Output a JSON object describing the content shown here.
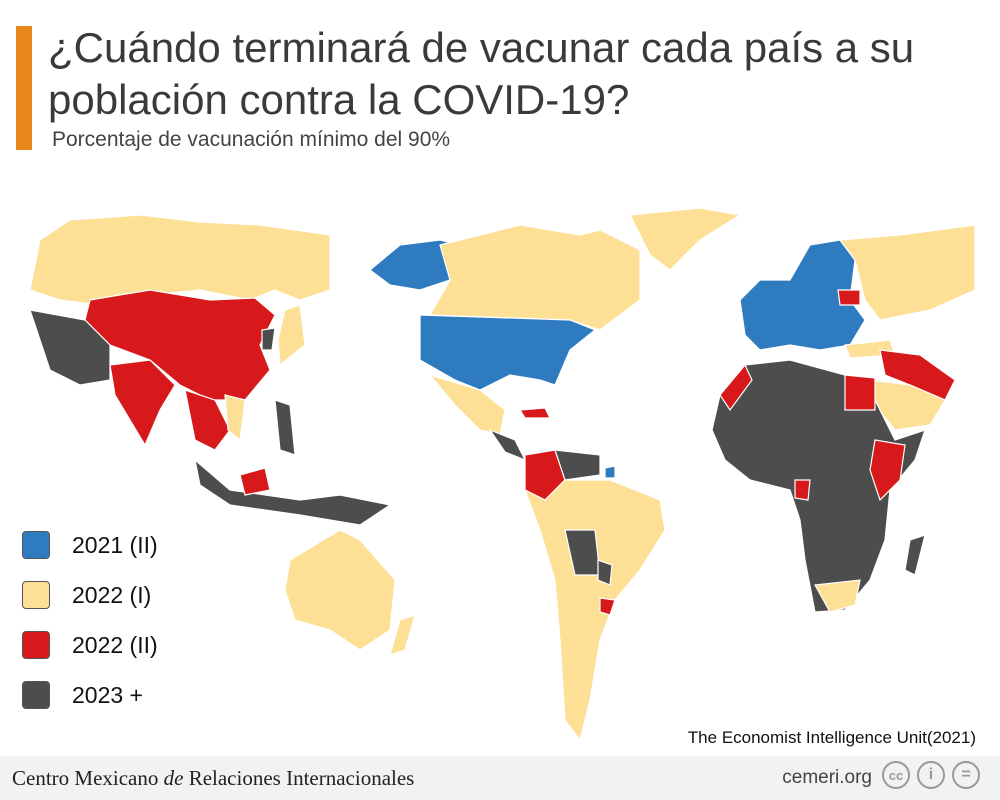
{
  "title": "¿Cuándo terminará de vacunar cada país a su población contra la COVID-19?",
  "subtitle": "Porcentaje de vacunación mínimo del 90%",
  "colors": {
    "accent": "#e8861a",
    "c2021_II": "#2e7bbf",
    "c2022_I": "#fddf95",
    "c2022_II": "#d7191c",
    "c2023": "#4d4d4d"
  },
  "legend": [
    {
      "label": "2021 (II)",
      "color": "#2e7bbf"
    },
    {
      "label": "2022 (I)",
      "color": "#fddf95"
    },
    {
      "label": "2022 (II)",
      "color": "#d7191c"
    },
    {
      "label": "2023 +",
      "color": "#4d4d4d"
    }
  ],
  "source": "The Economist Intelligence Unit(2021)",
  "footer": {
    "org_pre": "Centro Mexicano ",
    "org_em": "de",
    "org_post": " Relaciones Internacionales",
    "site": "cemeri.org",
    "icons": [
      "cc-icon",
      "attribution-icon",
      "no-derivatives-icon"
    ],
    "cc_text": "cc"
  }
}
